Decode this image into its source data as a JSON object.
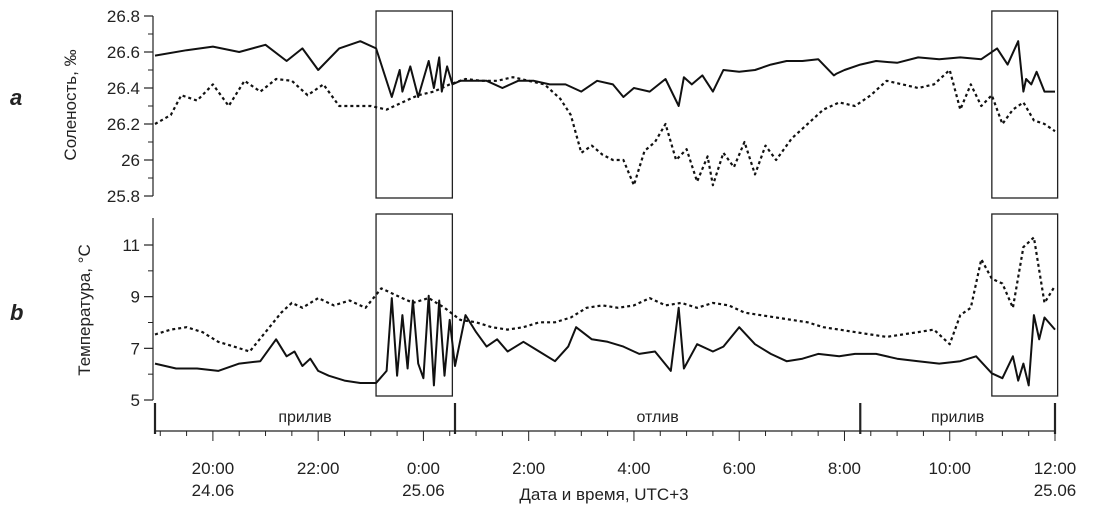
{
  "chart_data": {
    "type": "line",
    "panels": [
      {
        "letter": "a",
        "ylabel": "Соленость, ‰",
        "ylim": [
          25.8,
          26.8
        ],
        "yticks": [
          "26.8",
          "26.6",
          "26.4",
          "26.2",
          "26",
          "25.8"
        ],
        "series": [
          {
            "style": "solid",
            "x": [
              -5.1,
              -4.5,
              -4.0,
              -3.5,
              -3.0,
              -2.6,
              -2.3,
              -2.0,
              -1.6,
              -1.2,
              -0.9,
              -0.6,
              -0.45,
              -0.4,
              -0.25,
              -0.1,
              0.1,
              0.2,
              0.3,
              0.35,
              0.45,
              0.55,
              0.7,
              0.9,
              1.2,
              1.5,
              1.8,
              2.1,
              2.4,
              2.7,
              3.0,
              3.3,
              3.6,
              3.8,
              4.0,
              4.3,
              4.6,
              4.85,
              4.95,
              5.1,
              5.3,
              5.5,
              5.7,
              6.0,
              6.3,
              6.6,
              6.9,
              7.2,
              7.5,
              7.8,
              7.85,
              8.0,
              8.3,
              8.6,
              9.0,
              9.4,
              9.8,
              10.2,
              10.6,
              10.9,
              11.1,
              11.3,
              11.4,
              11.45,
              11.55,
              11.65,
              11.8,
              12.0
            ],
            "y": [
              26.58,
              26.61,
              26.63,
              26.6,
              26.64,
              26.55,
              26.62,
              26.5,
              26.62,
              26.66,
              26.62,
              26.35,
              26.5,
              26.38,
              26.52,
              26.35,
              26.55,
              26.4,
              26.57,
              26.38,
              26.52,
              26.42,
              26.44,
              26.44,
              26.44,
              26.4,
              26.44,
              26.44,
              26.42,
              26.42,
              26.38,
              26.44,
              26.42,
              26.35,
              26.4,
              26.38,
              26.45,
              26.3,
              26.46,
              26.42,
              26.47,
              26.38,
              26.5,
              26.49,
              26.5,
              26.53,
              26.55,
              26.55,
              26.56,
              26.47,
              26.48,
              26.5,
              26.53,
              26.55,
              26.54,
              26.57,
              26.56,
              26.57,
              26.56,
              26.62,
              26.53,
              26.66,
              26.38,
              26.45,
              26.42,
              26.49,
              26.38,
              26.38
            ]
          },
          {
            "style": "dotted",
            "x": [
              -5.1,
              -4.8,
              -4.6,
              -4.3,
              -4.0,
              -3.7,
              -3.4,
              -3.1,
              -2.8,
              -2.5,
              -2.2,
              -1.9,
              -1.6,
              -1.3,
              -1.0,
              -0.7,
              -0.4,
              -0.1,
              0.2,
              0.5,
              0.8,
              1.1,
              1.4,
              1.7,
              2.0,
              2.3,
              2.6,
              2.8,
              3.0,
              3.2,
              3.4,
              3.6,
              3.8,
              4.0,
              4.2,
              4.4,
              4.6,
              4.8,
              5.0,
              5.2,
              5.4,
              5.5,
              5.7,
              5.9,
              6.1,
              6.3,
              6.5,
              6.7,
              7.0,
              7.3,
              7.6,
              7.9,
              8.2,
              8.5,
              8.8,
              9.1,
              9.4,
              9.7,
              10.0,
              10.2,
              10.4,
              10.6,
              10.8,
              11.0,
              11.2,
              11.4,
              11.6,
              11.8,
              12.0
            ],
            "y": [
              26.2,
              26.25,
              26.36,
              26.33,
              26.42,
              26.3,
              26.44,
              26.38,
              26.45,
              26.44,
              26.36,
              26.42,
              26.3,
              26.3,
              26.3,
              26.28,
              26.32,
              26.36,
              26.38,
              26.42,
              26.45,
              26.44,
              26.44,
              26.46,
              26.44,
              26.42,
              26.34,
              26.25,
              26.04,
              26.08,
              26.03,
              26.0,
              26.0,
              25.86,
              26.05,
              26.1,
              26.2,
              26.0,
              26.06,
              25.88,
              26.02,
              25.86,
              26.04,
              25.96,
              26.1,
              25.92,
              26.08,
              26.0,
              26.12,
              26.2,
              26.28,
              26.32,
              26.3,
              26.36,
              26.44,
              26.42,
              26.4,
              26.42,
              26.5,
              26.28,
              26.42,
              26.3,
              26.36,
              26.2,
              26.28,
              26.32,
              26.22,
              26.2,
              26.16
            ]
          }
        ],
        "boxes": [
          [
            -0.9,
            0.55
          ],
          [
            10.8,
            12.05
          ]
        ]
      },
      {
        "letter": "b",
        "ylabel": "Температура, °C",
        "ylim": [
          5,
          12.5
        ],
        "yticks": [
          "11",
          "9",
          "7",
          "5"
        ],
        "series": [
          {
            "style": "solid",
            "x": [
              -5.1,
              -4.7,
              -4.3,
              -3.9,
              -3.5,
              -3.1,
              -2.8,
              -2.6,
              -2.45,
              -2.3,
              -2.15,
              -2.0,
              -1.8,
              -1.5,
              -1.2,
              -0.9,
              -0.7,
              -0.6,
              -0.5,
              -0.4,
              -0.3,
              -0.2,
              -0.1,
              0.0,
              0.1,
              0.2,
              0.3,
              0.4,
              0.5,
              0.6,
              0.8,
              1.0,
              1.2,
              1.4,
              1.6,
              1.9,
              2.2,
              2.5,
              2.75,
              2.9,
              3.2,
              3.5,
              3.8,
              4.1,
              4.4,
              4.7,
              4.85,
              4.95,
              5.2,
              5.5,
              5.7,
              6.0,
              6.3,
              6.6,
              6.9,
              7.2,
              7.5,
              7.9,
              8.2,
              8.6,
              9.0,
              9.4,
              9.8,
              10.2,
              10.5,
              10.8,
              11.0,
              11.2,
              11.3,
              11.4,
              11.5,
              11.6,
              11.7,
              11.8,
              12.0
            ],
            "y": [
              6.5,
              6.3,
              6.3,
              6.2,
              6.5,
              6.6,
              7.5,
              6.8,
              7.0,
              6.4,
              6.7,
              6.2,
              6.0,
              5.8,
              5.7,
              5.7,
              6.2,
              9.2,
              6.0,
              8.5,
              6.3,
              9.1,
              6.5,
              5.9,
              9.3,
              5.6,
              9.1,
              6.0,
              8.3,
              6.4,
              8.5,
              7.8,
              7.2,
              7.5,
              7.0,
              7.4,
              7.0,
              6.6,
              7.2,
              8.0,
              7.5,
              7.4,
              7.2,
              6.9,
              7.0,
              6.2,
              8.8,
              6.3,
              7.3,
              7.0,
              7.2,
              8.0,
              7.3,
              6.9,
              6.6,
              6.7,
              6.9,
              6.8,
              6.9,
              6.9,
              6.7,
              6.6,
              6.5,
              6.6,
              6.8,
              6.1,
              5.9,
              6.8,
              5.8,
              6.5,
              5.6,
              8.5,
              7.5,
              8.4,
              7.9
            ]
          },
          {
            "style": "dotted",
            "x": [
              -5.1,
              -4.8,
              -4.5,
              -4.2,
              -3.9,
              -3.6,
              -3.3,
              -3.0,
              -2.7,
              -2.5,
              -2.3,
              -2.0,
              -1.7,
              -1.4,
              -1.1,
              -0.8,
              -0.5,
              -0.2,
              0.1,
              0.4,
              0.7,
              1.0,
              1.3,
              1.6,
              1.9,
              2.2,
              2.5,
              2.8,
              3.1,
              3.4,
              3.7,
              4.0,
              4.3,
              4.6,
              4.9,
              5.2,
              5.5,
              5.8,
              6.1,
              6.4,
              6.7,
              7.0,
              7.3,
              7.6,
              7.9,
              8.2,
              8.5,
              8.8,
              9.1,
              9.4,
              9.7,
              10.0,
              10.2,
              10.4,
              10.6,
              10.8,
              11.0,
              11.2,
              11.4,
              11.6,
              11.8,
              12.0
            ],
            "y": [
              7.7,
              7.9,
              8.0,
              7.8,
              7.4,
              7.2,
              7.0,
              7.8,
              8.6,
              9.0,
              8.8,
              9.2,
              8.9,
              9.1,
              8.8,
              9.6,
              9.3,
              9.0,
              9.2,
              8.8,
              8.3,
              8.2,
              8.0,
              7.9,
              8.0,
              8.2,
              8.2,
              8.4,
              8.8,
              8.9,
              8.8,
              8.9,
              9.2,
              8.9,
              9.0,
              8.8,
              9.0,
              8.9,
              8.6,
              8.5,
              8.4,
              8.3,
              8.2,
              8.0,
              7.9,
              7.8,
              7.7,
              7.6,
              7.7,
              7.8,
              7.9,
              7.3,
              8.5,
              8.8,
              10.8,
              10.0,
              9.8,
              8.8,
              11.3,
              11.7,
              9.0,
              9.7
            ]
          }
        ],
        "boxes": [
          [
            -0.9,
            0.55
          ],
          [
            10.8,
            12.05
          ]
        ]
      }
    ],
    "x_axis": {
      "xlim": [
        -5.1,
        12.0
      ],
      "ticks": [
        {
          "t": -4.0,
          "time": "20:00",
          "date": "24.06"
        },
        {
          "t": -2.0,
          "time": "22:00",
          "date": ""
        },
        {
          "t": 0.0,
          "time": "0:00",
          "date": "25.06"
        },
        {
          "t": 2.0,
          "time": "2:00",
          "date": ""
        },
        {
          "t": 4.0,
          "time": "4:00",
          "date": ""
        },
        {
          "t": 6.0,
          "time": "6:00",
          "date": ""
        },
        {
          "t": 8.0,
          "time": "8:00",
          "date": ""
        },
        {
          "t": 10.0,
          "time": "10:00",
          "date": ""
        },
        {
          "t": 12.0,
          "time": "12:00",
          "date": "25.06"
        }
      ],
      "xlabel": "Дата и время, UTC+3"
    },
    "tide_phases": [
      {
        "label": "прилив",
        "from": -5.1,
        "to": 0.6
      },
      {
        "label": "отлив",
        "from": 0.6,
        "to": 8.3
      },
      {
        "label": "прилив",
        "from": 8.3,
        "to": 12.0
      }
    ]
  }
}
